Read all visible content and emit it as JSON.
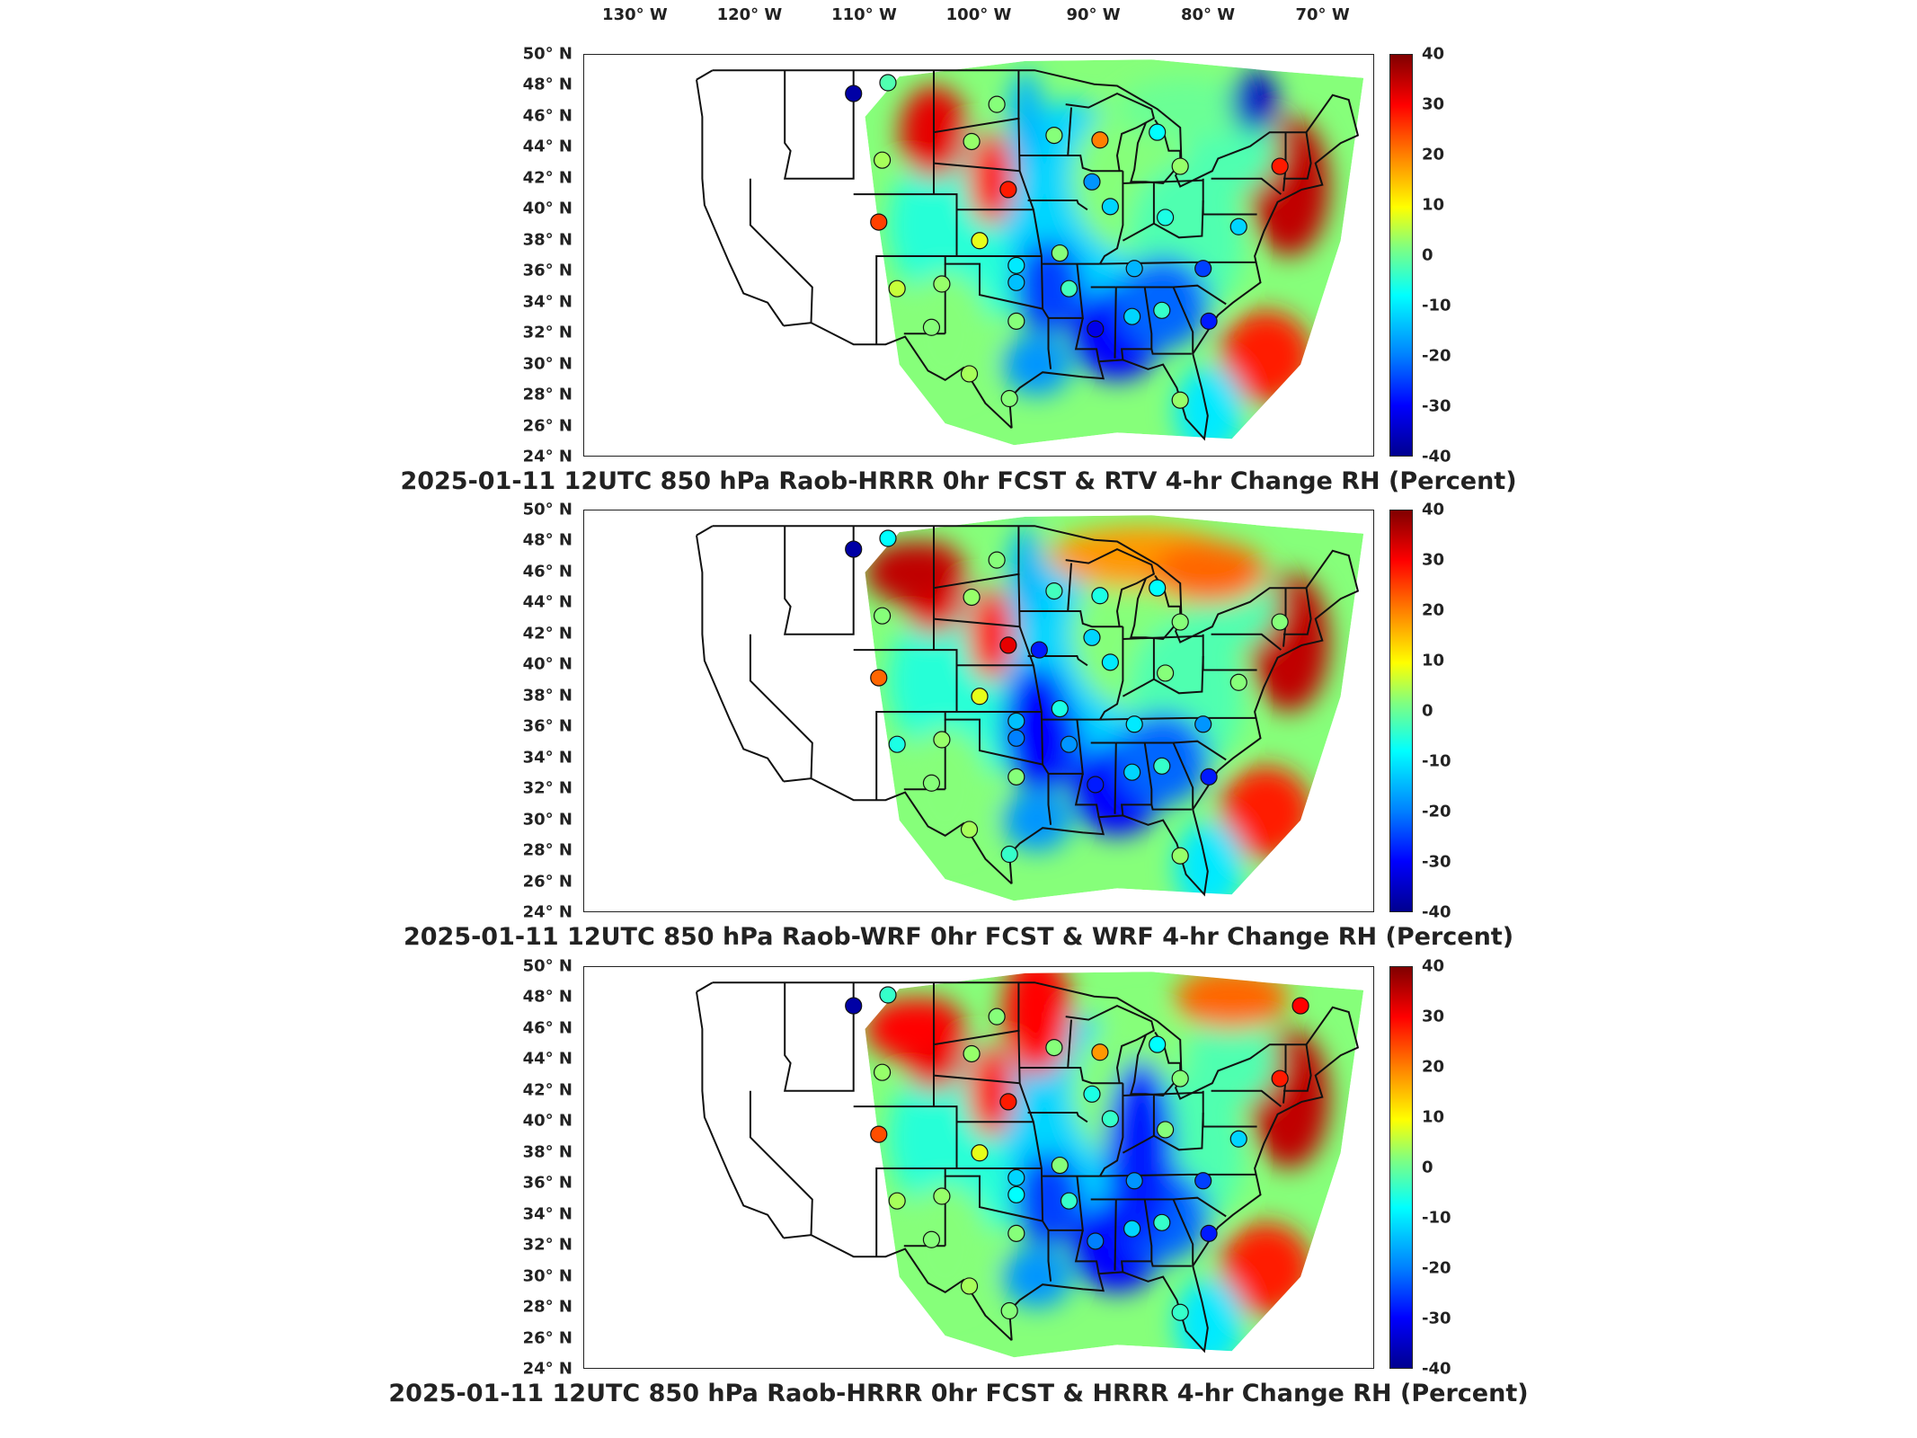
{
  "longitude_ticks": [
    "130° W",
    "120° W",
    "110° W",
    "100° W",
    "90° W",
    "80° W",
    "70° W"
  ],
  "latitude_ticks": [
    "50° N",
    "48° N",
    "46° N",
    "44° N",
    "42° N",
    "40° N",
    "38° N",
    "36° N",
    "34° N",
    "32° N",
    "30° N",
    "28° N",
    "26° N",
    "24° N"
  ],
  "colorbar_ticks": [
    "40",
    "30",
    "20",
    "10",
    "0",
    "-10",
    "-20",
    "-30",
    "-40"
  ],
  "colormap": [
    "#00008f",
    "#0000ff",
    "#0080ff",
    "#00ffff",
    "#80ff80",
    "#ffff00",
    "#ff8000",
    "#ff0000",
    "#800000"
  ],
  "chart_data": [
    {
      "type": "heatmap",
      "title": "2025-01-11 12UTC 850 hPa Raob-HRRR 0hr FCST & RTV 4-hr Change RH (Percent)",
      "xlabel": "",
      "ylabel": "",
      "colorbar_range": [
        -40,
        40
      ],
      "raob_stations": [
        {
          "lon": -111,
          "lat": 47.5,
          "value": -38
        },
        {
          "lon": -108,
          "lat": 48.2,
          "value": -2
        },
        {
          "lon": -98.5,
          "lat": 46.8,
          "value": 2
        },
        {
          "lon": -100.7,
          "lat": 44.4,
          "value": 3
        },
        {
          "lon": -108.5,
          "lat": 43.2,
          "value": 4
        },
        {
          "lon": -97.5,
          "lat": 41.3,
          "value": 28
        },
        {
          "lon": -108.8,
          "lat": 39.2,
          "value": 25
        },
        {
          "lon": -100,
          "lat": 38.0,
          "value": 8
        },
        {
          "lon": -93.5,
          "lat": 44.8,
          "value": 2
        },
        {
          "lon": -89.5,
          "lat": 44.5,
          "value": 20
        },
        {
          "lon": -84.5,
          "lat": 45.0,
          "value": -8
        },
        {
          "lon": -90.2,
          "lat": 41.8,
          "value": -18
        },
        {
          "lon": -88.6,
          "lat": 40.2,
          "value": -12
        },
        {
          "lon": -83.8,
          "lat": 39.5,
          "value": -6
        },
        {
          "lon": -82.5,
          "lat": 42.8,
          "value": 3
        },
        {
          "lon": -73.8,
          "lat": 42.8,
          "value": 28
        },
        {
          "lon": -93,
          "lat": 37.2,
          "value": 2
        },
        {
          "lon": -96.8,
          "lat": 36.4,
          "value": -10
        },
        {
          "lon": -96.8,
          "lat": 35.3,
          "value": -14
        },
        {
          "lon": -103.3,
          "lat": 35.2,
          "value": 3
        },
        {
          "lon": -107.2,
          "lat": 34.9,
          "value": 6
        },
        {
          "lon": -104.2,
          "lat": 32.4,
          "value": 2
        },
        {
          "lon": -96.8,
          "lat": 32.8,
          "value": 2
        },
        {
          "lon": -92.2,
          "lat": 34.9,
          "value": -3
        },
        {
          "lon": -89.9,
          "lat": 32.3,
          "value": -32
        },
        {
          "lon": -86.7,
          "lat": 33.1,
          "value": -12
        },
        {
          "lon": -84.1,
          "lat": 33.5,
          "value": -4
        },
        {
          "lon": -86.5,
          "lat": 36.2,
          "value": -15
        },
        {
          "lon": -80.5,
          "lat": 36.2,
          "value": -25
        },
        {
          "lon": -80.0,
          "lat": 32.8,
          "value": -28
        },
        {
          "lon": -97.4,
          "lat": 27.8,
          "value": 2
        },
        {
          "lon": -100.9,
          "lat": 29.4,
          "value": 4
        },
        {
          "lon": -82.5,
          "lat": 27.7,
          "value": 3
        },
        {
          "lon": -77.4,
          "lat": 38.9,
          "value": -12
        }
      ]
    },
    {
      "type": "heatmap",
      "title": "2025-01-11 12UTC 850 hPa Raob-WRF 0hr FCST & WRF 4-hr Change RH (Percent)",
      "xlabel": "",
      "ylabel": "",
      "colorbar_range": [
        -40,
        40
      ],
      "raob_stations": [
        {
          "lon": -111,
          "lat": 47.5,
          "value": -38
        },
        {
          "lon": -108,
          "lat": 48.2,
          "value": -8
        },
        {
          "lon": -98.5,
          "lat": 46.8,
          "value": 2
        },
        {
          "lon": -100.7,
          "lat": 44.4,
          "value": 3
        },
        {
          "lon": -108.5,
          "lat": 43.2,
          "value": 2
        },
        {
          "lon": -97.5,
          "lat": 41.3,
          "value": 32
        },
        {
          "lon": -108.8,
          "lat": 39.2,
          "value": 22
        },
        {
          "lon": -100,
          "lat": 38.0,
          "value": 8
        },
        {
          "lon": -94.8,
          "lat": 41.0,
          "value": -28
        },
        {
          "lon": -93.5,
          "lat": 44.8,
          "value": -3
        },
        {
          "lon": -89.5,
          "lat": 44.5,
          "value": -6
        },
        {
          "lon": -84.5,
          "lat": 45.0,
          "value": -8
        },
        {
          "lon": -90.2,
          "lat": 41.8,
          "value": -12
        },
        {
          "lon": -88.6,
          "lat": 40.2,
          "value": -10
        },
        {
          "lon": -83.8,
          "lat": 39.5,
          "value": 2
        },
        {
          "lon": -82.5,
          "lat": 42.8,
          "value": 2
        },
        {
          "lon": -73.8,
          "lat": 42.8,
          "value": 2
        },
        {
          "lon": -93,
          "lat": 37.2,
          "value": -6
        },
        {
          "lon": -96.8,
          "lat": 36.4,
          "value": -14
        },
        {
          "lon": -96.8,
          "lat": 35.3,
          "value": -20
        },
        {
          "lon": -103.3,
          "lat": 35.2,
          "value": 3
        },
        {
          "lon": -107.2,
          "lat": 34.9,
          "value": -6
        },
        {
          "lon": -104.2,
          "lat": 32.4,
          "value": 2
        },
        {
          "lon": -96.8,
          "lat": 32.8,
          "value": 2
        },
        {
          "lon": -92.2,
          "lat": 34.9,
          "value": -18
        },
        {
          "lon": -89.9,
          "lat": 32.3,
          "value": -28
        },
        {
          "lon": -86.7,
          "lat": 33.1,
          "value": -12
        },
        {
          "lon": -84.1,
          "lat": 33.5,
          "value": -4
        },
        {
          "lon": -86.5,
          "lat": 36.2,
          "value": -10
        },
        {
          "lon": -80.5,
          "lat": 36.2,
          "value": -18
        },
        {
          "lon": -80.0,
          "lat": 32.8,
          "value": -28
        },
        {
          "lon": -97.4,
          "lat": 27.8,
          "value": -4
        },
        {
          "lon": -100.9,
          "lat": 29.4,
          "value": 4
        },
        {
          "lon": -82.5,
          "lat": 27.7,
          "value": 3
        },
        {
          "lon": -77.4,
          "lat": 38.9,
          "value": 2
        }
      ]
    },
    {
      "type": "heatmap",
      "title": "2025-01-11 12UTC 850 hPa Raob-HRRR 0hr FCST & HRRR 4-hr Change RH (Percent)",
      "xlabel": "",
      "ylabel": "",
      "colorbar_range": [
        -40,
        40
      ],
      "raob_stations": [
        {
          "lon": -111,
          "lat": 47.5,
          "value": -38
        },
        {
          "lon": -108,
          "lat": 48.2,
          "value": -4
        },
        {
          "lon": -98.5,
          "lat": 46.8,
          "value": 2
        },
        {
          "lon": -100.7,
          "lat": 44.4,
          "value": 3
        },
        {
          "lon": -108.5,
          "lat": 43.2,
          "value": 3
        },
        {
          "lon": -97.5,
          "lat": 41.3,
          "value": 28
        },
        {
          "lon": -108.8,
          "lat": 39.2,
          "value": 24
        },
        {
          "lon": -100,
          "lat": 38.0,
          "value": 8
        },
        {
          "lon": -93.5,
          "lat": 44.8,
          "value": 2
        },
        {
          "lon": -89.5,
          "lat": 44.5,
          "value": 18
        },
        {
          "lon": -84.5,
          "lat": 45.0,
          "value": -8
        },
        {
          "lon": -90.2,
          "lat": 41.8,
          "value": -6
        },
        {
          "lon": -88.6,
          "lat": 40.2,
          "value": -4
        },
        {
          "lon": -83.8,
          "lat": 39.5,
          "value": 2
        },
        {
          "lon": -82.5,
          "lat": 42.8,
          "value": 2
        },
        {
          "lon": -73.8,
          "lat": 42.8,
          "value": 28
        },
        {
          "lon": -72.0,
          "lat": 47.5,
          "value": 30
        },
        {
          "lon": -93,
          "lat": 37.2,
          "value": 2
        },
        {
          "lon": -96.8,
          "lat": 36.4,
          "value": -12
        },
        {
          "lon": -96.8,
          "lat": 35.3,
          "value": -8
        },
        {
          "lon": -103.3,
          "lat": 35.2,
          "value": 3
        },
        {
          "lon": -107.2,
          "lat": 34.9,
          "value": 4
        },
        {
          "lon": -104.2,
          "lat": 32.4,
          "value": 2
        },
        {
          "lon": -96.8,
          "lat": 32.8,
          "value": 2
        },
        {
          "lon": -92.2,
          "lat": 34.9,
          "value": -4
        },
        {
          "lon": -89.9,
          "lat": 32.3,
          "value": -20
        },
        {
          "lon": -86.7,
          "lat": 33.1,
          "value": -12
        },
        {
          "lon": -84.1,
          "lat": 33.5,
          "value": -4
        },
        {
          "lon": -86.5,
          "lat": 36.2,
          "value": -18
        },
        {
          "lon": -80.5,
          "lat": 36.2,
          "value": -25
        },
        {
          "lon": -80.0,
          "lat": 32.8,
          "value": -28
        },
        {
          "lon": -97.4,
          "lat": 27.8,
          "value": 2
        },
        {
          "lon": -100.9,
          "lat": 29.4,
          "value": 4
        },
        {
          "lon": -82.5,
          "lat": 27.7,
          "value": -4
        },
        {
          "lon": -77.4,
          "lat": 38.9,
          "value": -12
        }
      ]
    }
  ]
}
